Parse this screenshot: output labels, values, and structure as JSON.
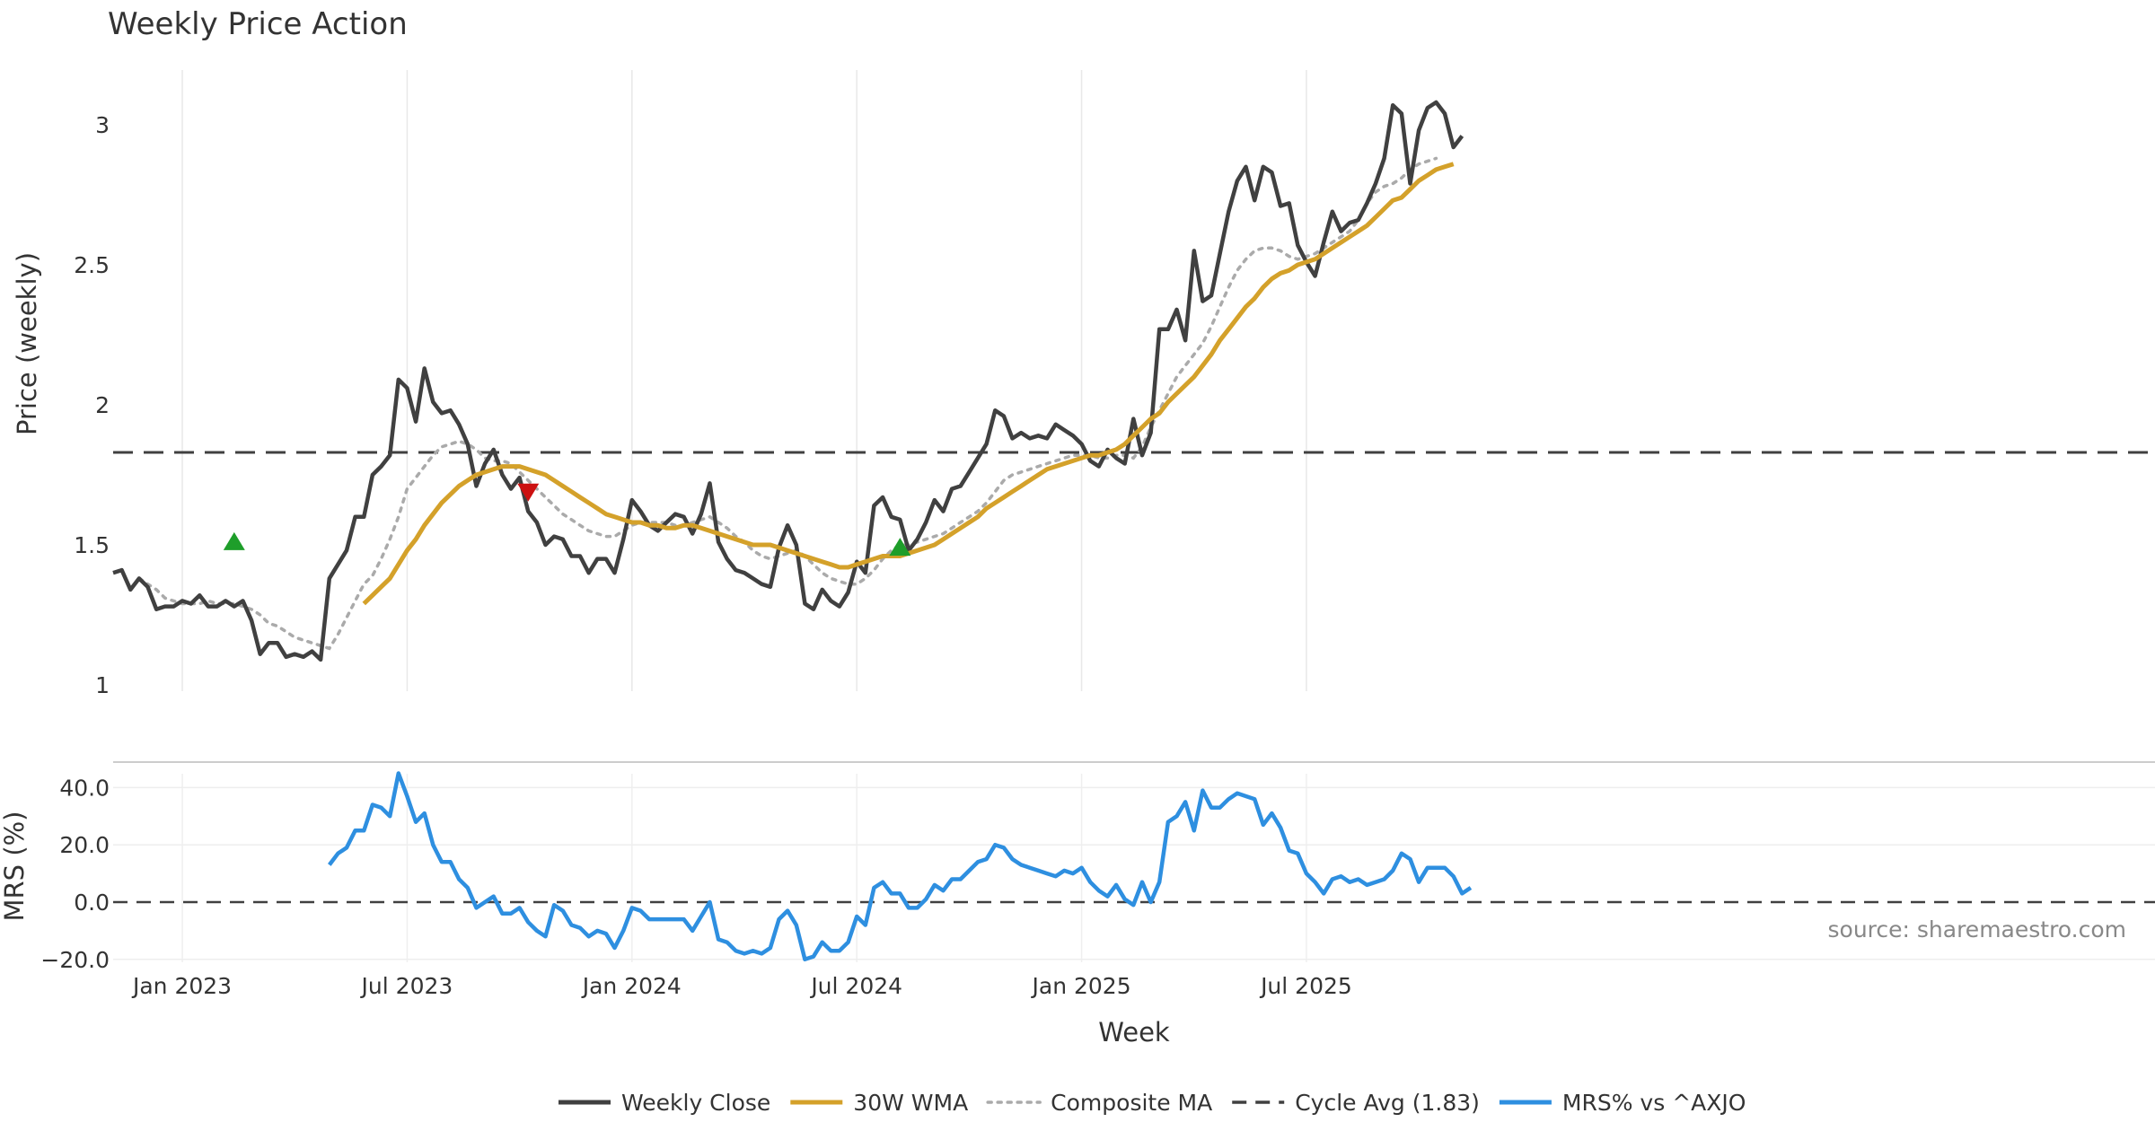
{
  "chart_data": [
    {
      "type": "line",
      "title": "Weekly Price Action",
      "xlabel": "",
      "ylabel": "Price (weekly)",
      "ylim": [
        1,
        3.2
      ],
      "yticks": [
        1,
        1.5,
        2,
        2.5,
        3
      ],
      "ytick_labels": [
        "1",
        "1.5",
        "2",
        "2.5",
        "3"
      ],
      "x_start": "2022-11-07",
      "grid": "vertical",
      "cycle_avg": 1.83,
      "markers": [
        {
          "type": "buy",
          "week_index": 14,
          "value": 1.51
        },
        {
          "type": "sell",
          "week_index": 48,
          "value": 1.69
        },
        {
          "type": "buy",
          "week_index": 91,
          "value": 1.49
        }
      ],
      "series": [
        {
          "name": "Weekly Close",
          "color": "#404040",
          "style": "solid",
          "values": [
            1.4,
            1.41,
            1.34,
            1.38,
            1.35,
            1.27,
            1.28,
            1.28,
            1.3,
            1.29,
            1.32,
            1.28,
            1.28,
            1.3,
            1.28,
            1.3,
            1.23,
            1.11,
            1.15,
            1.15,
            1.1,
            1.11,
            1.1,
            1.12,
            1.09,
            1.38,
            1.43,
            1.48,
            1.6,
            1.6,
            1.75,
            1.78,
            1.82,
            2.09,
            2.06,
            1.94,
            2.13,
            2.01,
            1.97,
            1.98,
            1.93,
            1.86,
            1.71,
            1.79,
            1.84,
            1.75,
            1.7,
            1.74,
            1.62,
            1.58,
            1.5,
            1.53,
            1.52,
            1.46,
            1.46,
            1.4,
            1.45,
            1.45,
            1.4,
            1.52,
            1.66,
            1.62,
            1.57,
            1.55,
            1.58,
            1.61,
            1.6,
            1.54,
            1.61,
            1.72,
            1.51,
            1.45,
            1.41,
            1.4,
            1.38,
            1.36,
            1.35,
            1.49,
            1.57,
            1.5,
            1.29,
            1.27,
            1.34,
            1.3,
            1.28,
            1.33,
            1.44,
            1.4,
            1.64,
            1.67,
            1.6,
            1.59,
            1.48,
            1.52,
            1.58,
            1.66,
            1.62,
            1.7,
            1.71,
            1.76,
            1.81,
            1.86,
            1.98,
            1.96,
            1.88,
            1.9,
            1.88,
            1.89,
            1.88,
            1.93,
            1.91,
            1.89,
            1.86,
            1.8,
            1.78,
            1.84,
            1.81,
            1.79,
            1.95,
            1.82,
            1.9,
            2.27,
            2.27,
            2.34,
            2.23,
            2.55,
            2.37,
            2.39,
            2.54,
            2.69,
            2.8,
            2.85,
            2.73,
            2.85,
            2.83,
            2.71,
            2.72,
            2.57,
            2.51,
            2.46,
            2.58,
            2.69,
            2.62,
            2.65,
            2.66,
            2.72,
            2.79,
            2.88,
            3.07,
            3.04,
            2.79,
            2.98,
            3.06,
            3.08,
            3.04,
            2.92,
            2.96
          ]
        },
        {
          "name": "30W WMA",
          "color": "#D4A12A",
          "style": "solid",
          "start_index": 29,
          "values": [
            1.29,
            1.32,
            1.35,
            1.38,
            1.43,
            1.48,
            1.52,
            1.57,
            1.61,
            1.65,
            1.68,
            1.71,
            1.73,
            1.75,
            1.76,
            1.77,
            1.78,
            1.78,
            1.78,
            1.77,
            1.76,
            1.75,
            1.73,
            1.71,
            1.69,
            1.67,
            1.65,
            1.63,
            1.61,
            1.6,
            1.59,
            1.58,
            1.58,
            1.57,
            1.57,
            1.56,
            1.56,
            1.57,
            1.57,
            1.56,
            1.55,
            1.54,
            1.53,
            1.52,
            1.51,
            1.5,
            1.5,
            1.5,
            1.49,
            1.48,
            1.47,
            1.46,
            1.45,
            1.44,
            1.43,
            1.42,
            1.42,
            1.43,
            1.44,
            1.45,
            1.46,
            1.46,
            1.46,
            1.47,
            1.48,
            1.49,
            1.5,
            1.52,
            1.54,
            1.56,
            1.58,
            1.6,
            1.63,
            1.65,
            1.67,
            1.69,
            1.71,
            1.73,
            1.75,
            1.77,
            1.78,
            1.79,
            1.8,
            1.81,
            1.82,
            1.82,
            1.83,
            1.84,
            1.86,
            1.89,
            1.92,
            1.95,
            1.97,
            2.01,
            2.04,
            2.07,
            2.1,
            2.14,
            2.18,
            2.23,
            2.27,
            2.31,
            2.35,
            2.38,
            2.42,
            2.45,
            2.47,
            2.48,
            2.5,
            2.51,
            2.52,
            2.54,
            2.56,
            2.58,
            2.6,
            2.62,
            2.64,
            2.67,
            2.7,
            2.73,
            2.74,
            2.77,
            2.8,
            2.82,
            2.84,
            2.85,
            2.86
          ]
        },
        {
          "name": "Composite MA",
          "color": "#AAAAAA",
          "style": "dotted",
          "start_index": 3,
          "values": [
            1.38,
            1.36,
            1.34,
            1.31,
            1.3,
            1.29,
            1.29,
            1.29,
            1.3,
            1.29,
            1.29,
            1.29,
            1.28,
            1.27,
            1.25,
            1.22,
            1.21,
            1.19,
            1.17,
            1.16,
            1.15,
            1.14,
            1.13,
            1.18,
            1.24,
            1.3,
            1.36,
            1.39,
            1.45,
            1.52,
            1.6,
            1.7,
            1.74,
            1.78,
            1.82,
            1.85,
            1.86,
            1.87,
            1.86,
            1.84,
            1.81,
            1.8,
            1.8,
            1.79,
            1.76,
            1.73,
            1.7,
            1.67,
            1.64,
            1.61,
            1.59,
            1.57,
            1.55,
            1.54,
            1.53,
            1.53,
            1.55,
            1.57,
            1.58,
            1.58,
            1.58,
            1.58,
            1.57,
            1.57,
            1.58,
            1.59,
            1.6,
            1.58,
            1.56,
            1.53,
            1.51,
            1.48,
            1.46,
            1.45,
            1.46,
            1.47,
            1.48,
            1.46,
            1.43,
            1.4,
            1.38,
            1.37,
            1.36,
            1.36,
            1.38,
            1.41,
            1.45,
            1.48,
            1.5,
            1.5,
            1.51,
            1.52,
            1.53,
            1.54,
            1.56,
            1.58,
            1.6,
            1.62,
            1.65,
            1.69,
            1.73,
            1.75,
            1.76,
            1.77,
            1.78,
            1.79,
            1.8,
            1.81,
            1.82,
            1.82,
            1.82,
            1.81,
            1.81,
            1.82,
            1.82,
            1.81,
            1.85,
            1.92,
            1.98,
            2.04,
            2.1,
            2.14,
            2.18,
            2.22,
            2.28,
            2.35,
            2.42,
            2.48,
            2.52,
            2.55,
            2.56,
            2.56,
            2.55,
            2.53,
            2.52,
            2.53,
            2.54,
            2.56,
            2.58,
            2.6,
            2.62,
            2.66,
            2.72,
            2.76,
            2.78,
            2.79,
            2.81,
            2.84,
            2.86,
            2.87,
            2.88
          ]
        }
      ]
    },
    {
      "type": "line",
      "title": "",
      "xlabel": "Week",
      "ylabel": "MRS (%)",
      "ylim": [
        -21,
        48
      ],
      "yticks": [
        -20,
        0,
        20,
        40
      ],
      "ytick_labels": [
        "−20.0",
        "0.0",
        "20.0",
        "40.0"
      ],
      "x_tick_labels": [
        "Jan 2023",
        "Jul 2023",
        "Jan 2024",
        "Jul 2024",
        "Jan 2025",
        "Jul 2025"
      ],
      "x_tick_week_index": [
        8,
        34,
        60,
        86,
        112,
        138
      ],
      "zero_line": 0,
      "annotation": "source: sharemaestro.com",
      "series": [
        {
          "name": "MRS% vs ^AXJO",
          "color": "#2E8FE0",
          "style": "solid",
          "start_index": 25,
          "values": [
            13,
            17,
            19,
            25,
            25,
            34,
            33,
            30,
            45,
            37,
            28,
            31,
            20,
            14,
            14,
            8,
            5,
            -2,
            0,
            2,
            -4,
            -4,
            -2,
            -7,
            -10,
            -12,
            -1,
            -3,
            -8,
            -9,
            -12,
            -10,
            -11,
            -16,
            -10,
            -2,
            -3,
            -6,
            -6,
            -6,
            -6,
            -6,
            -10,
            -5,
            0,
            -13,
            -14,
            -17,
            -18,
            -17,
            -18,
            -16,
            -6,
            -3,
            -8,
            -20,
            -19,
            -14,
            -17,
            -17,
            -14,
            -5,
            -8,
            5,
            7,
            3,
            3,
            -2,
            -2,
            1,
            6,
            4,
            8,
            8,
            11,
            14,
            15,
            20,
            19,
            15,
            13,
            12,
            11,
            10,
            9,
            11,
            10,
            12,
            7,
            4,
            2,
            6,
            1,
            -1,
            7,
            0,
            7,
            28,
            30,
            35,
            25,
            39,
            33,
            33,
            36,
            38,
            37,
            36,
            27,
            31,
            26,
            18,
            17,
            10,
            7,
            3,
            8,
            9,
            7,
            8,
            6,
            7,
            8,
            11,
            17,
            15,
            7,
            12,
            12,
            12,
            9,
            3,
            5
          ]
        }
      ]
    }
  ],
  "legend": {
    "position": "bottom-center",
    "items": [
      {
        "label": "Weekly Close",
        "color": "#404040",
        "style": "solid"
      },
      {
        "label": "30W WMA",
        "color": "#D4A12A",
        "style": "solid"
      },
      {
        "label": "Composite MA",
        "color": "#AAAAAA",
        "style": "dotted"
      },
      {
        "label": "Cycle Avg (1.83)",
        "color": "#404040",
        "style": "dashed"
      },
      {
        "label": "MRS% vs ^AXJO",
        "color": "#2E8FE0",
        "style": "solid"
      }
    ]
  }
}
